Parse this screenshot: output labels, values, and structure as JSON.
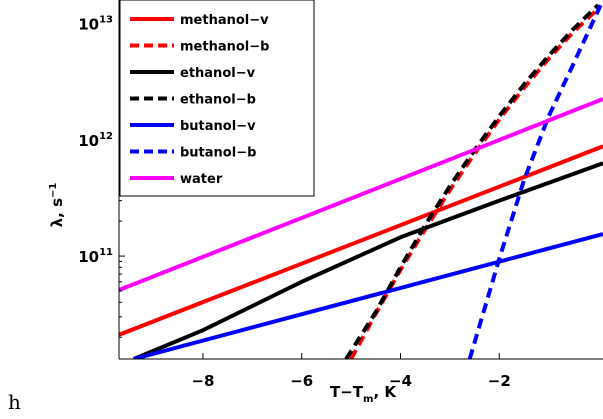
{
  "chart_data": {
    "type": "line",
    "title": "",
    "xlabel": "T−T",
    "xlabel_sub": "m",
    "xlabel_unit": ", K",
    "ylabel": "λ, s",
    "ylabel_sup": "−1",
    "xlim": [
      -9.7,
      0.1
    ],
    "ylim": [
      13000000000.0,
      16000000000000.0
    ],
    "yscale": "log",
    "grid": false,
    "legend_position": "top-left",
    "x_ticks": [
      -8,
      -6,
      -4,
      -2
    ],
    "x_tick_labels": [
      "−8",
      "−6",
      "−4",
      "−2"
    ],
    "y_ticks": [
      100000000000.0,
      1000000000000.0,
      10000000000000.0
    ],
    "y_tick_bases": [
      "10",
      "10",
      "10"
    ],
    "y_tick_exps": [
      "11",
      "12",
      "13"
    ],
    "series": [
      {
        "name": "methanol−v",
        "color": "#ff0000",
        "dash": "solid",
        "x": [
          -9.7,
          0.1
        ],
        "y": [
          21000000000.0,
          880000000000.0
        ]
      },
      {
        "name": "methanol−b",
        "color": "#ff0000",
        "dash": "dashed",
        "x": [
          -5.0,
          -4.5,
          -4.0,
          -3.5,
          -3.0,
          -2.5,
          -2.0,
          -1.5,
          -1.0,
          -0.5,
          0.0
        ],
        "y": [
          13000000000.0,
          32000000000.0,
          76000000000.0,
          170000000000.0,
          370000000000.0,
          760000000000.0,
          1500000000000.0,
          2800000000000.0,
          5000000000000.0,
          8500000000000.0,
          13500000000000.0
        ]
      },
      {
        "name": "ethanol−v",
        "color": "#000000",
        "dash": "solid",
        "x": [
          -9.4,
          -8.0,
          -6.0,
          -4.0,
          -2.0,
          0.1
        ],
        "y": [
          13000000000.0,
          23000000000.0,
          60000000000.0,
          145000000000.0,
          300000000000.0,
          630000000000.0
        ]
      },
      {
        "name": "ethanol−b",
        "color": "#000000",
        "dash": "dashed",
        "x": [
          -5.1,
          -4.5,
          -4.0,
          -3.5,
          -3.0,
          -2.5,
          -2.0,
          -1.5,
          -1.0,
          -0.5,
          0.0
        ],
        "y": [
          13000000000.0,
          33000000000.0,
          80000000000.0,
          185000000000.0,
          400000000000.0,
          820000000000.0,
          1600000000000.0,
          3000000000000.0,
          5300000000000.0,
          9000000000000.0,
          14500000000000.0
        ]
      },
      {
        "name": "butanol−v",
        "color": "#0000ff",
        "dash": "solid",
        "x": [
          -9.4,
          0.1
        ],
        "y": [
          13000000000.0,
          155000000000.0
        ]
      },
      {
        "name": "butanol−b",
        "color": "#0000ff",
        "dash": "dashed",
        "x": [
          -2.6,
          -2.0,
          -1.5,
          -1.0,
          -0.5,
          0.1
        ],
        "y": [
          13000000000.0,
          95000000000.0,
          450000000000.0,
          1600000000000.0,
          4500000000000.0,
          16000000000000.0
        ]
      },
      {
        "name": "water",
        "color": "#ff00ff",
        "dash": "solid",
        "x": [
          -9.7,
          0.1
        ],
        "y": [
          51000000000.0,
          2250000000000.0
        ]
      }
    ]
  },
  "corner_letter": "h"
}
